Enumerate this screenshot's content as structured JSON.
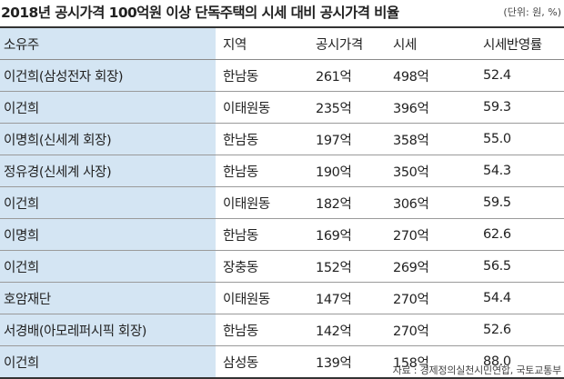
{
  "title": "2018년 공시가격 100억원 이상 단독주택의 시세 대비 공시가격 비율",
  "unit": "(단위: 원, %)",
  "columns": [
    "소유주",
    "지역",
    "공시가격",
    "시세",
    "시세반영률"
  ],
  "rows": [
    [
      "이건희(삼성전자 회장)",
      "한남동",
      "261억",
      "498억",
      "52.4"
    ],
    [
      "이건희",
      "이태원동",
      "235억",
      "396억",
      "59.3"
    ],
    [
      "이명희(신세계 회장)",
      "한남동",
      "197억",
      "358억",
      "55.0"
    ],
    [
      "정유경(신세계 사장)",
      "한남동",
      "190억",
      "350억",
      "54.3"
    ],
    [
      "이건희",
      "이태원동",
      "182억",
      "306억",
      "59.5"
    ],
    [
      "이명희",
      "한남동",
      "169억",
      "270억",
      "62.6"
    ],
    [
      "이건희",
      "장충동",
      "152억",
      "269억",
      "56.5"
    ],
    [
      "호암재단",
      "이태원동",
      "147억",
      "270억",
      "54.4"
    ],
    [
      "서경배(아모레퍼시픽 회장)",
      "한남동",
      "142억",
      "270억",
      "52.6"
    ],
    [
      "이건희",
      "삼성동",
      "139억",
      "158억",
      "88.0"
    ]
  ],
  "source": "자료 : 경제정의실천시민연합, 국토교통부",
  "colors": {
    "owner_column_bg": "#d4e5f3",
    "rule": "#333333"
  }
}
